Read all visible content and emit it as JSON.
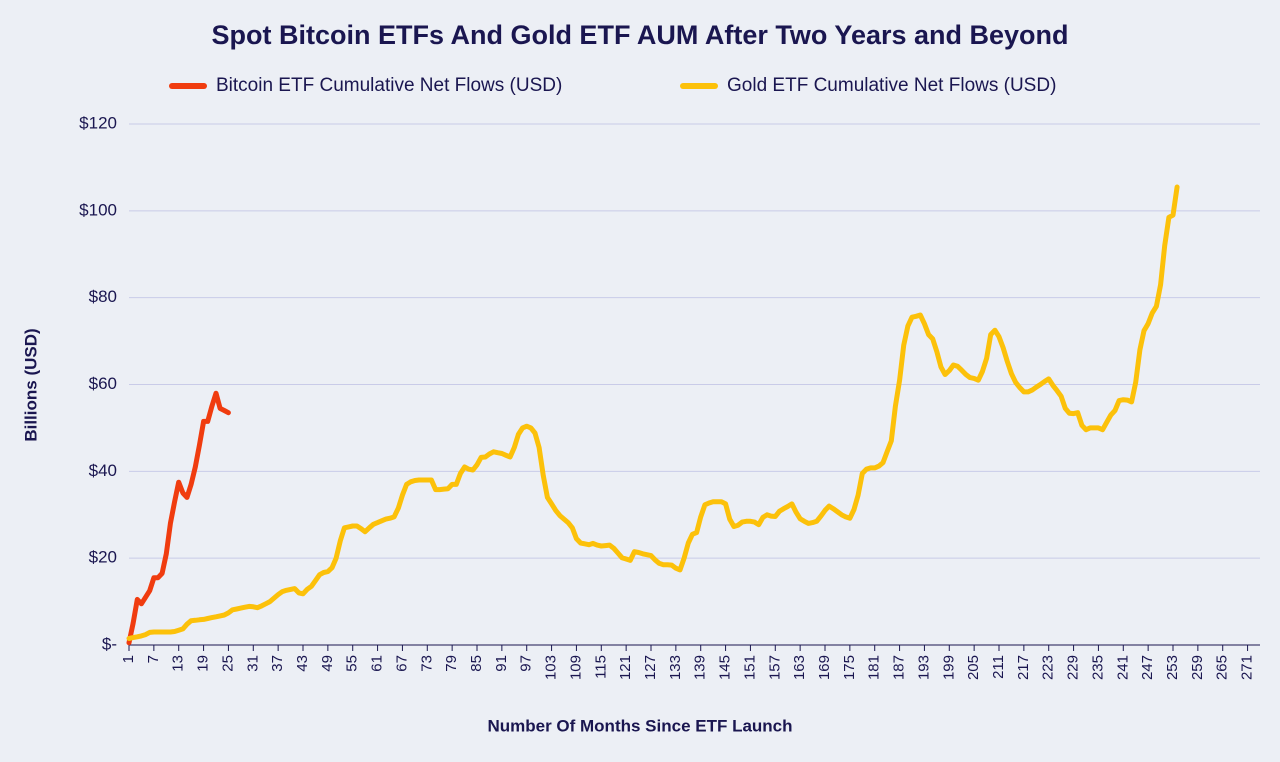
{
  "chart_data": {
    "type": "line",
    "title": "Spot Bitcoin ETFs And Gold ETF AUM After Two Years and Beyond",
    "x_label": "Number Of Months Since ETF Launch",
    "y_label": "Billions (USD)",
    "xlim": [
      1,
      274
    ],
    "ylim": [
      0,
      120
    ],
    "xticks": [
      1,
      7,
      13,
      19,
      25,
      31,
      37,
      43,
      49,
      55,
      61,
      67,
      73,
      79,
      85,
      91,
      97,
      103,
      109,
      115,
      121,
      127,
      133,
      139,
      145,
      151,
      157,
      163,
      169,
      175,
      181,
      187,
      193,
      199,
      205,
      211,
      217,
      223,
      229,
      235,
      241,
      247,
      253,
      259,
      265,
      271
    ],
    "yticks": [
      {
        "value": 0,
        "label": "$-"
      },
      {
        "value": 20,
        "label": "$20"
      },
      {
        "value": 40,
        "label": "$40"
      },
      {
        "value": 60,
        "label": "$60"
      },
      {
        "value": 80,
        "label": "$80"
      },
      {
        "value": 100,
        "label": "$100"
      },
      {
        "value": 120,
        "label": "$120"
      }
    ],
    "grid": true,
    "series": [
      {
        "name": "Bitcoin ETF Cumulative Net Flows (USD)",
        "color": "#f03c0f",
        "x": [
          1,
          2,
          3,
          4,
          5,
          6,
          7,
          8,
          9,
          10,
          11,
          12,
          13,
          14,
          15,
          16,
          17,
          18,
          19,
          20,
          21,
          22,
          23,
          24,
          25
        ],
        "values": [
          0.5,
          5,
          10.5,
          9.5,
          11,
          12.5,
          15.5,
          15.5,
          16.5,
          21,
          28,
          33,
          37.5,
          35,
          34,
          37,
          41,
          46,
          51.5,
          51.5,
          55,
          58,
          54.5,
          54,
          53.5
        ]
      },
      {
        "name": "Gold ETF Cumulative Net Flows (USD)",
        "color": "#fcc10a",
        "x": [
          1,
          2,
          3,
          4,
          5,
          6,
          7,
          8,
          9,
          10,
          11,
          12,
          13,
          14,
          15,
          16,
          17,
          18,
          19,
          20,
          21,
          22,
          23,
          24,
          25,
          26,
          27,
          28,
          29,
          30,
          31,
          32,
          33,
          34,
          35,
          36,
          37,
          38,
          39,
          40,
          41,
          42,
          43,
          44,
          45,
          46,
          47,
          48,
          49,
          50,
          51,
          52,
          53,
          54,
          55,
          56,
          57,
          58,
          59,
          60,
          61,
          62,
          63,
          64,
          65,
          66,
          67,
          68,
          69,
          70,
          71,
          72,
          73,
          74,
          75,
          76,
          77,
          78,
          79,
          80,
          81,
          82,
          83,
          84,
          85,
          86,
          87,
          88,
          89,
          90,
          91,
          92,
          93,
          94,
          95,
          96,
          97,
          98,
          99,
          100,
          101,
          102,
          103,
          104,
          105,
          106,
          107,
          108,
          109,
          110,
          111,
          112,
          113,
          114,
          115,
          116,
          117,
          118,
          119,
          120,
          121,
          122,
          123,
          124,
          125,
          126,
          127,
          128,
          129,
          130,
          131,
          132,
          133,
          134,
          135,
          136,
          137,
          138,
          139,
          140,
          141,
          142,
          143,
          144,
          145,
          146,
          147,
          148,
          149,
          150,
          151,
          152,
          153,
          154,
          155,
          156,
          157,
          158,
          159,
          160,
          161,
          162,
          163,
          164,
          165,
          166,
          167,
          168,
          169,
          170,
          171,
          172,
          173,
          174,
          175,
          176,
          177,
          178,
          179,
          180,
          181,
          182,
          183,
          184,
          185,
          186,
          187,
          188,
          189,
          190,
          191,
          192,
          193,
          194,
          195,
          196,
          197,
          198,
          199,
          200,
          201,
          202,
          203,
          204,
          205,
          206,
          207,
          208,
          209,
          210,
          211,
          212,
          213,
          214,
          215,
          216,
          217,
          218,
          219,
          220,
          221,
          222,
          223,
          224,
          225,
          226,
          227,
          228,
          229,
          230,
          231,
          232,
          233,
          234,
          235,
          236,
          237,
          238,
          239,
          240,
          241,
          242,
          243,
          244,
          245,
          246,
          247,
          248,
          249,
          250,
          251,
          252,
          253,
          254
        ],
        "values": [
          1.5,
          1.7,
          1.9,
          2.1,
          2.4,
          2.9,
          3,
          3,
          3,
          3,
          3,
          3.1,
          3.4,
          3.7,
          4.8,
          5.6,
          5.7,
          5.8,
          5.9,
          6.1,
          6.3,
          6.5,
          6.7,
          6.9,
          7.4,
          8.1,
          8.3,
          8.5,
          8.7,
          8.9,
          8.8,
          8.6,
          9,
          9.5,
          10,
          10.8,
          11.6,
          12.3,
          12.6,
          12.8,
          13,
          12,
          11.8,
          12.8,
          13.5,
          14.8,
          16.2,
          16.7,
          16.9,
          17.8,
          20,
          24,
          27,
          27.2,
          27.4,
          27.4,
          26.8,
          26.1,
          27,
          27.8,
          28.2,
          28.6,
          29,
          29.2,
          29.5,
          31.5,
          34.5,
          37,
          37.6,
          37.9,
          38,
          38,
          38,
          38,
          35.8,
          35.8,
          35.9,
          36,
          37,
          37,
          39.5,
          41,
          40.5,
          40.3,
          41.5,
          43.2,
          43.3,
          44,
          44.5,
          44.3,
          44.1,
          43.7,
          43.3,
          45.5,
          48.5,
          50,
          50.4,
          50,
          48.8,
          45.5,
          39,
          34,
          32.5,
          31,
          29.8,
          29,
          28.2,
          27,
          24.5,
          23.5,
          23.3,
          23.1,
          23.4,
          23,
          22.8,
          22.9,
          23,
          22.3,
          21.2,
          20.1,
          19.8,
          19.5,
          21.5,
          21.3,
          21,
          20.8,
          20.6,
          19.6,
          18.8,
          18.5,
          18.5,
          18.4,
          17.7,
          17.3,
          20,
          23.5,
          25.5,
          25.9,
          29.5,
          32.3,
          32.7,
          33,
          33,
          33,
          32.5,
          29,
          27.3,
          27.6,
          28.3,
          28.5,
          28.5,
          28.3,
          27.7,
          29.4,
          30,
          29.7,
          29.6,
          30.8,
          31.4,
          31.9,
          32.5,
          30.6,
          29.1,
          28.5,
          28,
          28.2,
          28.5,
          29.7,
          31,
          32,
          31.4,
          30.7,
          30,
          29.5,
          29.2,
          31.2,
          34.5,
          39.5,
          40.5,
          40.8,
          40.8,
          41.2,
          42,
          44.5,
          47,
          55,
          61,
          69,
          73.5,
          75.5,
          75.7,
          76,
          74,
          71.5,
          70.5,
          67.5,
          64,
          62.3,
          63.2,
          64.5,
          64.2,
          63.3,
          62.3,
          61.6,
          61.4,
          61,
          63,
          66,
          71.5,
          72.5,
          71,
          68.5,
          65.3,
          62.5,
          60.5,
          59.3,
          58.3,
          58.3,
          58.7,
          59.4,
          60,
          60.7,
          61.3,
          59.8,
          58.6,
          57.3,
          54.5,
          53.4,
          53.3,
          53.5,
          50.6,
          49.6,
          50,
          50,
          50,
          49.6,
          51.3,
          53,
          54,
          56.3,
          56.5,
          56.4,
          56,
          60.5,
          68,
          72.4,
          74,
          76.5,
          78,
          83,
          92,
          98.5,
          99,
          105.5
        ]
      }
    ]
  }
}
